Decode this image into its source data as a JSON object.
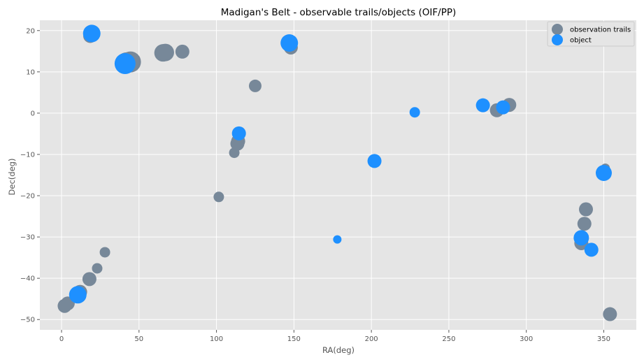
{
  "chart_data": {
    "type": "scatter",
    "title": "Madigan's Belt - observable trails/objects (OIF/PP)",
    "xlabel": "RA(deg)",
    "ylabel": "Dec(deg)",
    "xlim": [
      -14,
      371
    ],
    "ylim": [
      -52.5,
      22.5
    ],
    "xticks": [
      0,
      50,
      100,
      150,
      200,
      250,
      300,
      350
    ],
    "yticks": [
      -50,
      -40,
      -30,
      -20,
      -10,
      0,
      10,
      20
    ],
    "grid": true,
    "legend_position": "top-right",
    "series": [
      {
        "name": "observation trails",
        "color": "#778899",
        "points": [
          {
            "x": 2,
            "y": -46.7,
            "s": 2
          },
          {
            "x": 4,
            "y": -46.1,
            "s": 2
          },
          {
            "x": 12,
            "y": -43.3,
            "s": 2
          },
          {
            "x": 18,
            "y": -40.2,
            "s": 2
          },
          {
            "x": 23,
            "y": -37.6,
            "s": 1.5
          },
          {
            "x": 28,
            "y": -33.7,
            "s": 1.5
          },
          {
            "x": 18.5,
            "y": 18.7,
            "s": 2
          },
          {
            "x": 42,
            "y": 12.2,
            "s": 3
          },
          {
            "x": 44.5,
            "y": 12.4,
            "s": 3
          },
          {
            "x": 65.5,
            "y": 14.6,
            "s": 2.5
          },
          {
            "x": 67,
            "y": 14.7,
            "s": 2.5
          },
          {
            "x": 78,
            "y": 14.9,
            "s": 2
          },
          {
            "x": 101.5,
            "y": -20.3,
            "s": 1.5
          },
          {
            "x": 111.5,
            "y": -9.6,
            "s": 1.5
          },
          {
            "x": 113.5,
            "y": -7.4,
            "s": 2
          },
          {
            "x": 114,
            "y": -6.8,
            "s": 2
          },
          {
            "x": 125,
            "y": 6.6,
            "s": 1.8
          },
          {
            "x": 148,
            "y": 15.9,
            "s": 2
          },
          {
            "x": 281,
            "y": 0.7,
            "s": 2
          },
          {
            "x": 289,
            "y": 2.0,
            "s": 2
          },
          {
            "x": 335.5,
            "y": -31.5,
            "s": 2
          },
          {
            "x": 337.5,
            "y": -26.8,
            "s": 2
          },
          {
            "x": 338.5,
            "y": -23.3,
            "s": 2
          },
          {
            "x": 351,
            "y": -13.3,
            "s": 1.3
          },
          {
            "x": 354,
            "y": -48.7,
            "s": 2
          }
        ]
      },
      {
        "name": "object",
        "color": "#1e90ff",
        "points": [
          {
            "x": 10.5,
            "y": -44.0,
            "s": 2.5
          },
          {
            "x": 19.5,
            "y": 19.3,
            "s": 2.5
          },
          {
            "x": 41,
            "y": 12.0,
            "s": 3
          },
          {
            "x": 114.5,
            "y": -4.9,
            "s": 2
          },
          {
            "x": 147,
            "y": 17.0,
            "s": 2.5
          },
          {
            "x": 178,
            "y": -30.6,
            "s": 1.2
          },
          {
            "x": 202,
            "y": -11.6,
            "s": 2
          },
          {
            "x": 228,
            "y": 0.2,
            "s": 1.5
          },
          {
            "x": 272,
            "y": 1.9,
            "s": 2
          },
          {
            "x": 285,
            "y": 1.4,
            "s": 2
          },
          {
            "x": 335.5,
            "y": -30.2,
            "s": 2.2
          },
          {
            "x": 342,
            "y": -33.1,
            "s": 2
          },
          {
            "x": 350,
            "y": -14.5,
            "s": 2.3
          }
        ]
      }
    ]
  }
}
